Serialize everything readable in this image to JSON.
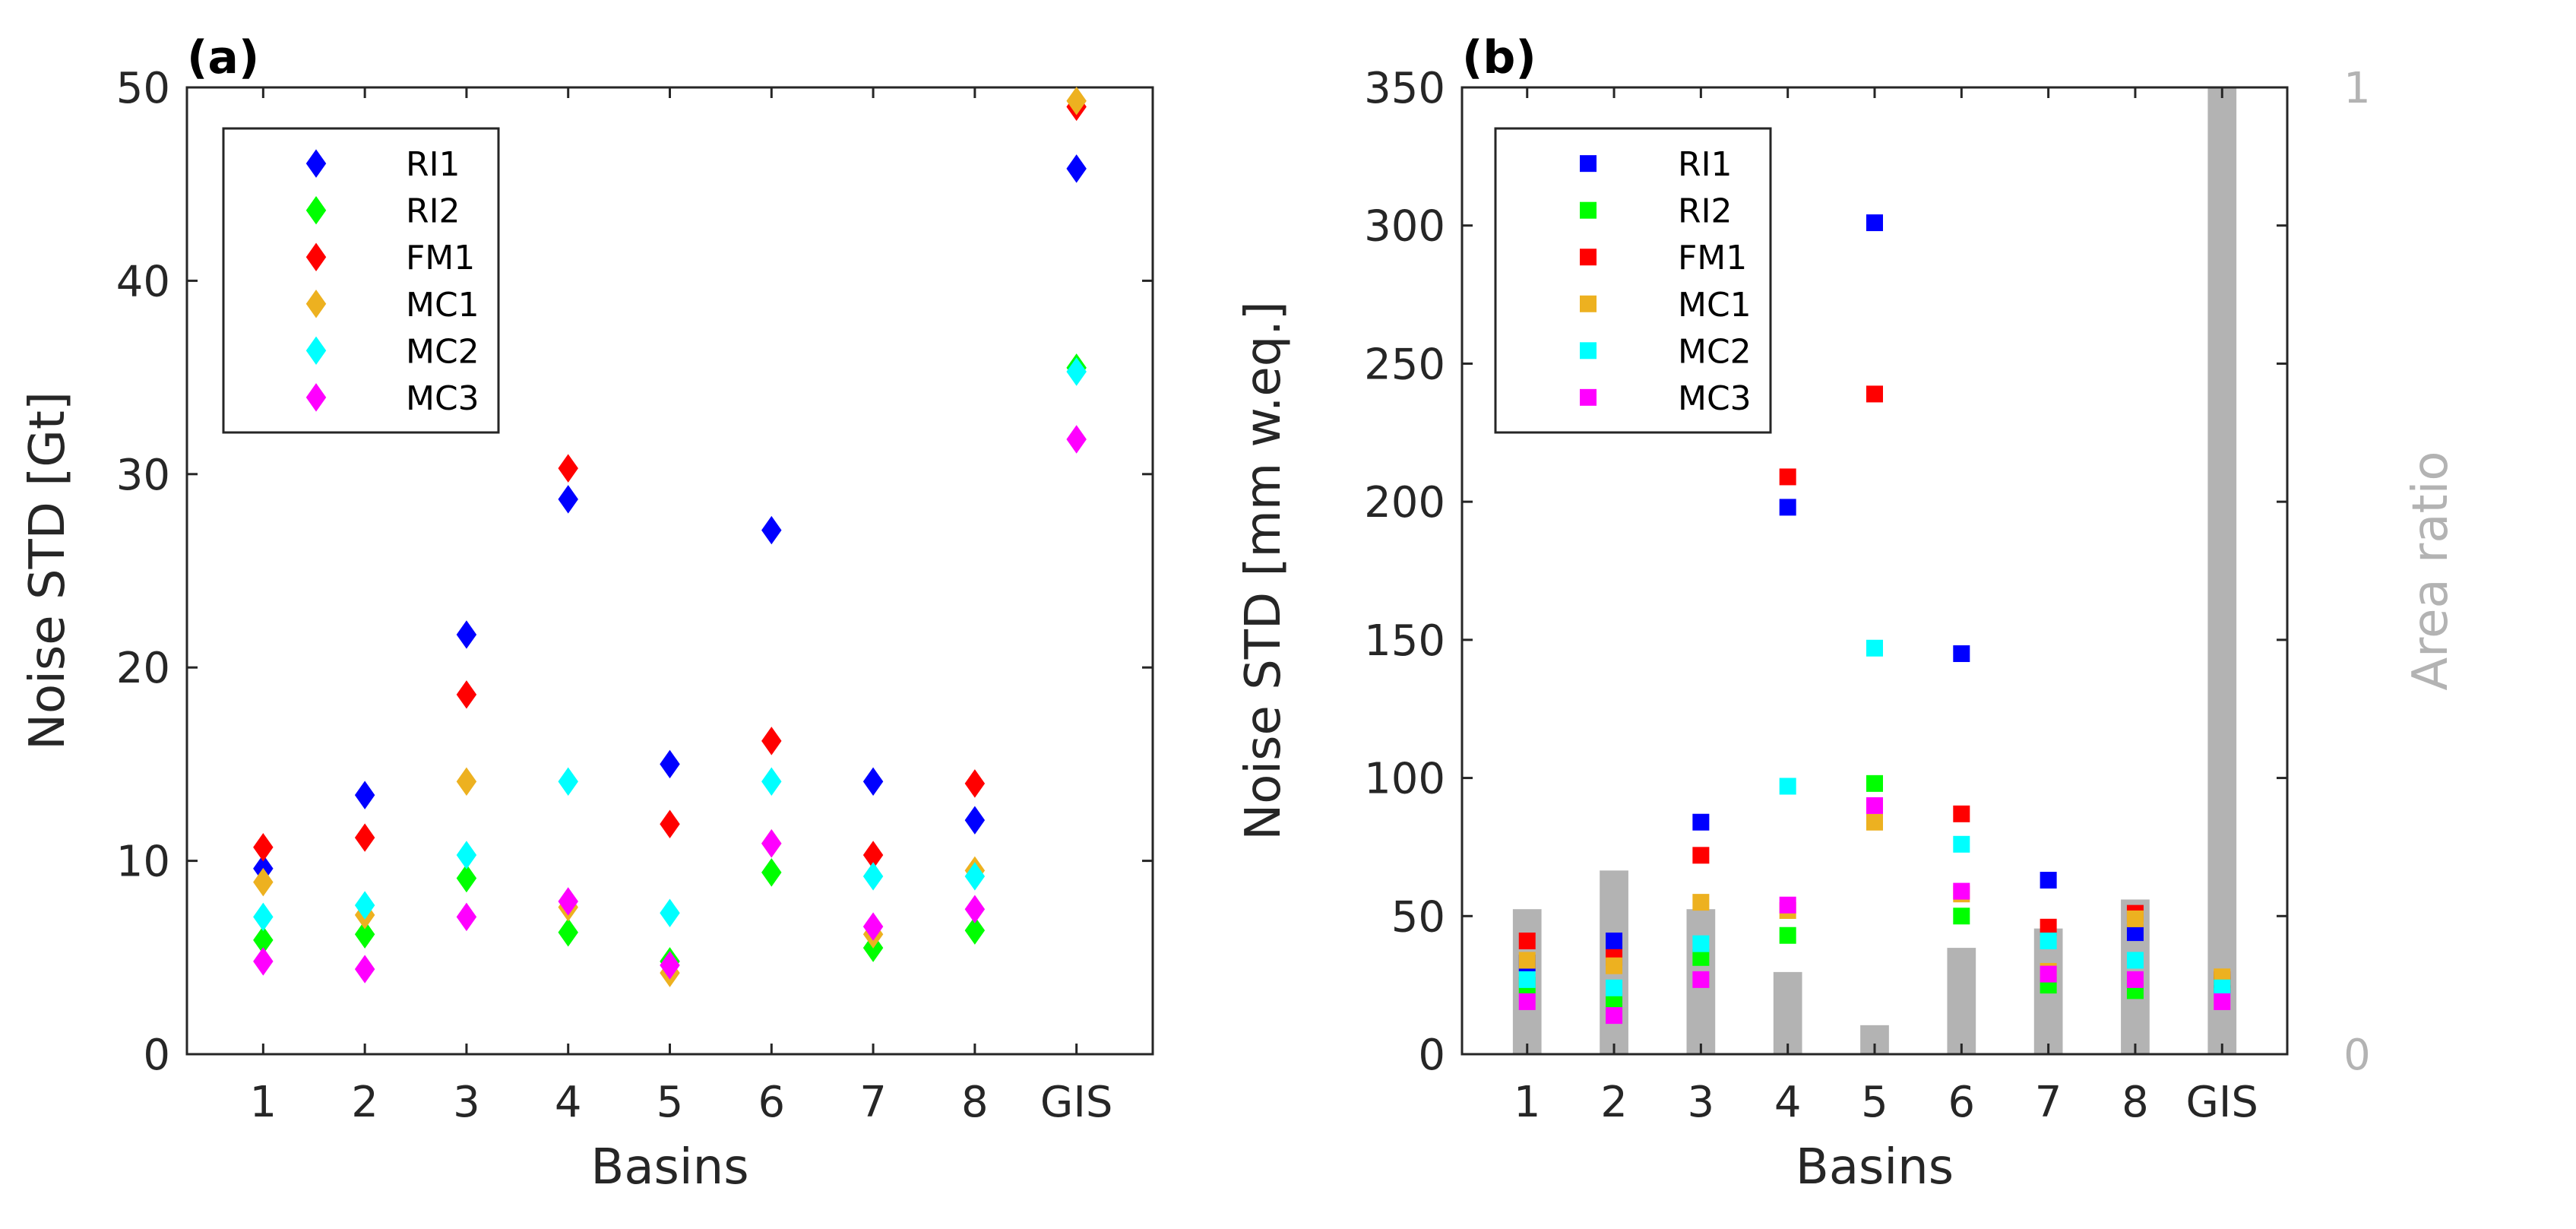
{
  "figure": {
    "panels": [
      "(a)",
      "(b)"
    ]
  },
  "chart_data": [
    {
      "type": "scatter",
      "panel_label": "(a)",
      "marker": "diamond",
      "title": "",
      "xlabel": "Basins",
      "ylabel": "Noise STD [Gt]",
      "categories": [
        "1",
        "2",
        "3",
        "4",
        "5",
        "6",
        "7",
        "8",
        "GIS"
      ],
      "ylim": [
        0,
        50
      ],
      "yticks": [
        0,
        10,
        20,
        30,
        40,
        50
      ],
      "legend_position": "top-left",
      "series": [
        {
          "name": "RI1",
          "color": "#0000ff",
          "values": [
            9.6,
            13.4,
            21.7,
            28.7,
            15.0,
            27.1,
            14.1,
            12.1,
            45.8
          ]
        },
        {
          "name": "RI2",
          "color": "#00ff00",
          "values": [
            5.9,
            6.2,
            9.1,
            6.3,
            4.8,
            9.4,
            5.5,
            6.4,
            35.5
          ]
        },
        {
          "name": "FM1",
          "color": "#ff0000",
          "values": [
            10.7,
            11.2,
            18.6,
            30.3,
            11.9,
            16.2,
            10.3,
            14.0,
            49.0
          ]
        },
        {
          "name": "MC1",
          "color": "#edb120",
          "values": [
            8.9,
            7.2,
            14.1,
            7.6,
            4.2,
            10.9,
            6.2,
            9.5,
            49.3
          ]
        },
        {
          "name": "MC2",
          "color": "#00ffff",
          "values": [
            7.1,
            7.7,
            10.3,
            14.1,
            7.3,
            14.1,
            9.2,
            9.2,
            35.3
          ]
        },
        {
          "name": "MC3",
          "color": "#ff00ff",
          "values": [
            4.8,
            4.4,
            7.1,
            7.9,
            4.6,
            10.9,
            6.6,
            7.5,
            31.8
          ]
        }
      ]
    },
    {
      "type": "scatter",
      "panel_label": "(b)",
      "marker": "square",
      "title": "",
      "xlabel": "Basins",
      "ylabel": "Noise STD [mm w.eq.]",
      "y2label": "Area ratio",
      "categories": [
        "1",
        "2",
        "3",
        "4",
        "5",
        "6",
        "7",
        "8",
        "GIS"
      ],
      "ylim": [
        0,
        350
      ],
      "yticks": [
        0,
        50,
        100,
        150,
        200,
        250,
        300,
        350
      ],
      "y2lim": [
        0,
        1
      ],
      "y2ticks": [
        0,
        1
      ],
      "legend_position": "top-left",
      "bars": {
        "name": "Area ratio",
        "color": "#b3b3b3",
        "values": [
          0.15,
          0.19,
          0.15,
          0.085,
          0.03,
          0.11,
          0.13,
          0.16,
          1.0
        ]
      },
      "series": [
        {
          "name": "RI1",
          "color": "#0000ff",
          "values": [
            33,
            41,
            84,
            198,
            301,
            145,
            63,
            44,
            25
          ]
        },
        {
          "name": "RI2",
          "color": "#00ff00",
          "values": [
            25,
            19,
            35,
            43,
            98,
            50,
            25,
            23,
            26
          ]
        },
        {
          "name": "FM1",
          "color": "#ff0000",
          "values": [
            41,
            35,
            72,
            209,
            239,
            87,
            46,
            51,
            27
          ]
        },
        {
          "name": "MC1",
          "color": "#edb120",
          "values": [
            34,
            32,
            55,
            52,
            84,
            58,
            30,
            49,
            28
          ]
        },
        {
          "name": "MC2",
          "color": "#00ffff",
          "values": [
            27,
            24,
            40,
            97,
            147,
            76,
            41,
            34,
            24
          ]
        },
        {
          "name": "MC3",
          "color": "#ff00ff",
          "values": [
            19,
            14,
            27,
            54,
            90,
            59,
            29,
            27,
            19
          ]
        }
      ]
    }
  ]
}
